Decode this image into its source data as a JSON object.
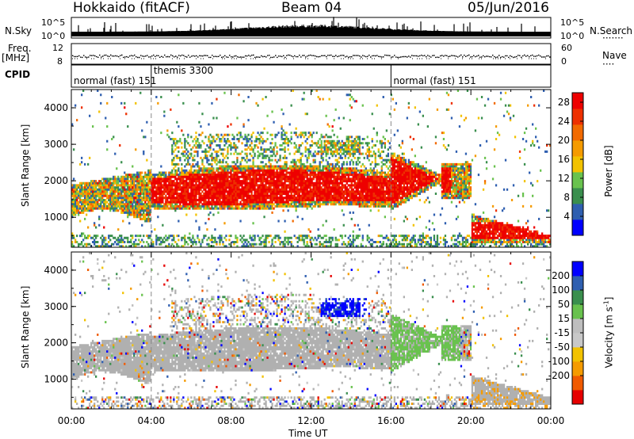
{
  "header": {
    "station": "Hokkaido (fitACF)",
    "beam": "Beam 04",
    "date": "05/Jun/2016"
  },
  "strips": {
    "nsky_label": "N.Sky",
    "nsearch_label": "N.Search",
    "freq_label": "Freq.",
    "freq_unit": "[MHz]",
    "nave_label": "Nave",
    "cpid_label": "CPID",
    "left_top_tick": "10^5",
    "left_bottom_tick": "10^0",
    "right_top_tick": "10^5",
    "right_bottom_tick": "10^0",
    "freq_top_tick": "12",
    "freq_bottom_tick": "8",
    "nave_top_tick": "60",
    "nave_bottom_tick": "0",
    "dots": "·······",
    "nave_dots": "····"
  },
  "cpid_segments": [
    {
      "label": "normal (fast)",
      "start_hour": 0,
      "end_hour": 4,
      "code": "151"
    },
    {
      "label": "themis",
      "start_hour": 4,
      "end_hour": 16,
      "code": "3300"
    },
    {
      "label": "normal (fast)",
      "start_hour": 16,
      "end_hour": 24,
      "code": "151"
    }
  ],
  "colors": {
    "power_scale": [
      "#0000ff",
      "#2f5fb0",
      "#3a8f4e",
      "#69c24e",
      "#f2c200",
      "#f59b00",
      "#f26a00",
      "#ee3000",
      "#ee0000"
    ],
    "velocity_scale": [
      "#e60000",
      "#f05a00",
      "#f59b00",
      "#f2c200",
      "#c8c8c8",
      "#bebebe",
      "#69c24e",
      "#3a8f4e",
      "#2f5fb0",
      "#0000ff"
    ],
    "ground_scatter": "#b0b0b0"
  },
  "chart_data": [
    {
      "type": "heatmap",
      "name": "Power",
      "ylabel": "Slant Range [km]",
      "xlabel": "",
      "ylim": [
        180,
        4500
      ],
      "y_ticks": [
        1000,
        2000,
        3000,
        4000
      ],
      "xlim": [
        0,
        24
      ],
      "colorbar_label": "Power [dB]",
      "colorbar_ticks": [
        4,
        8,
        12,
        16,
        20,
        24,
        28
      ],
      "colorbar_range": [
        0,
        30
      ]
    },
    {
      "type": "heatmap",
      "name": "Velocity",
      "ylabel": "Slant Range [km]",
      "xlabel": "Time UT",
      "ylim": [
        180,
        4500
      ],
      "y_ticks": [
        1000,
        2000,
        3000,
        4000
      ],
      "xlim": [
        0,
        24
      ],
      "x_ticks": [
        "00:00",
        "04:00",
        "08:00",
        "12:00",
        "16:00",
        "20:00",
        "00:00"
      ],
      "colorbar_label": "Velocity [m s^-1]",
      "colorbar_ticks": [
        "200",
        "100",
        "50",
        "15",
        "-15",
        "-50",
        "-100",
        "-200"
      ]
    }
  ],
  "axes": {
    "ylabel": "Slant Range [km]",
    "xlabel": "Time UT",
    "power_label": "Power [dB]",
    "velocity_label": "Velocity [m s",
    "velocity_exp": "-1",
    "velocity_close": "]"
  }
}
